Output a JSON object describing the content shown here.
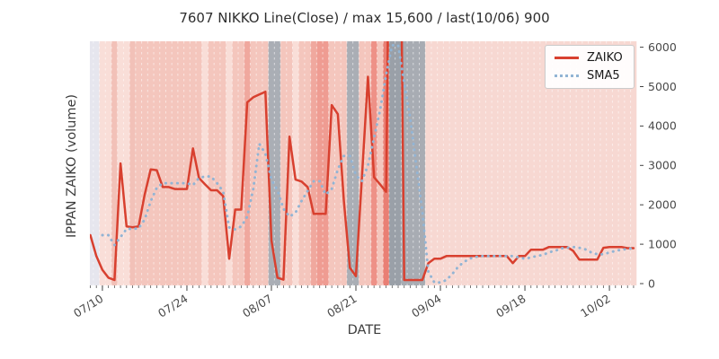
{
  "figure": {
    "title": "7607 NIKKO Line(Close) / max 15,600 / last(10/06) 900",
    "xlabel": "DATE",
    "ylabel": "IPPAN ZAIKO (volume)"
  },
  "legend": {
    "items": [
      {
        "label": "ZAIKO",
        "swatch": "solid-red-line"
      },
      {
        "label": "SMA5",
        "swatch": "dotted-blue-line"
      }
    ]
  },
  "chart_data": {
    "type": "line",
    "title": "7607 NIKKO Line(Close) / max 15,600 / last(10/06) 900",
    "xlabel": "DATE",
    "ylabel": "IPPAN ZAIKO (volume)",
    "x_axis": {
      "start_date": "07/08",
      "step_days": 1,
      "n_points": 91,
      "tick_indices": [
        2,
        16,
        30,
        44,
        58,
        72,
        86
      ],
      "tick_labels": [
        "07/10",
        "07/24",
        "08/07",
        "08/21",
        "09/04",
        "09/18",
        "10/02"
      ],
      "minor_ticks": "daily"
    },
    "y_axis": {
      "side": "right",
      "ticks": [
        0,
        1000,
        2000,
        3000,
        4000,
        5000,
        6000
      ],
      "ylim": [
        -50,
        6150
      ],
      "grid": false
    },
    "notes": "ZAIKO peak of 15,600 (around 08/27-08/28) is clipped above the visible y-range; last value 10/06 = 900.",
    "series": [
      {
        "name": "ZAIKO",
        "style": "solid",
        "color": "#d8402f",
        "values": [
          1230,
          700,
          350,
          150,
          90,
          3050,
          1450,
          1430,
          1450,
          2250,
          2900,
          2880,
          2450,
          2450,
          2400,
          2400,
          2400,
          3430,
          2680,
          2520,
          2370,
          2370,
          2220,
          630,
          1880,
          1880,
          4600,
          4730,
          4800,
          4870,
          1100,
          150,
          100,
          3730,
          2640,
          2590,
          2450,
          1770,
          1770,
          1770,
          4530,
          4300,
          2100,
          400,
          190,
          2700,
          5250,
          2700,
          2520,
          2330,
          15600,
          15600,
          90,
          90,
          90,
          90,
          520,
          630,
          630,
          700,
          700,
          700,
          700,
          700,
          700,
          700,
          700,
          700,
          700,
          700,
          520,
          700,
          700,
          860,
          860,
          860,
          930,
          930,
          930,
          930,
          830,
          610,
          610,
          610,
          610,
          910,
          930,
          930,
          930,
          900,
          900
        ]
      },
      {
        "name": "SMA5",
        "style": "dotted",
        "color": "#92b4d4",
        "derived": "5-day moving average of ZAIKO",
        "values": [
          null,
          null,
          1230,
          1230,
          980,
          1180,
          1390,
          1390,
          1400,
          1625,
          2090,
          2430,
          2550,
          2550,
          2550,
          2550,
          2550,
          2500,
          2680,
          2720,
          2720,
          2550,
          2340,
          1425,
          1375,
          1450,
          1700,
          2400,
          3550,
          3300,
          2640,
          2370,
          1900,
          1700,
          1800,
          2100,
          2350,
          2600,
          2600,
          2260,
          2400,
          2900,
          3240,
          3240,
          2750,
          2600,
          3000,
          3700,
          4400,
          5300,
          6050,
          6050,
          5100,
          4200,
          3000,
          1840,
          300,
          30,
          30,
          90,
          250,
          440,
          560,
          640,
          680,
          700,
          700,
          700,
          700,
          700,
          700,
          665,
          630,
          665,
          700,
          730,
          795,
          830,
          895,
          910,
          930,
          910,
          870,
          790,
          745,
          745,
          790,
          830,
          860,
          880,
          900
        ]
      }
    ],
    "background_bands": [
      {
        "from": 0,
        "to": 1,
        "color": "#e6e6ee"
      },
      {
        "from": 2,
        "to": 3,
        "color": "#f9ded8"
      },
      {
        "from": 4,
        "to": 4,
        "color": "#f2c1b8"
      },
      {
        "from": 5,
        "to": 6,
        "color": "#f9ded8"
      },
      {
        "from": 7,
        "to": 7,
        "color": "#f2c1b8"
      },
      {
        "from": 8,
        "to": 18,
        "color": "#f4c6bd"
      },
      {
        "from": 19,
        "to": 19,
        "color": "#f9ded8"
      },
      {
        "from": 20,
        "to": 22,
        "color": "#f4c6bd"
      },
      {
        "from": 23,
        "to": 23,
        "color": "#f9ded8"
      },
      {
        "from": 24,
        "to": 25,
        "color": "#f4c6bd"
      },
      {
        "from": 26,
        "to": 26,
        "color": "#f0a89e"
      },
      {
        "from": 27,
        "to": 29,
        "color": "#f4c6bd"
      },
      {
        "from": 30,
        "to": 31,
        "color": "#aaaeb5"
      },
      {
        "from": 32,
        "to": 33,
        "color": "#f4c6bd"
      },
      {
        "from": 34,
        "to": 34,
        "color": "#f9ded8"
      },
      {
        "from": 35,
        "to": 36,
        "color": "#f4c6bd"
      },
      {
        "from": 37,
        "to": 37,
        "color": "#f0a89e"
      },
      {
        "from": 38,
        "to": 39,
        "color": "#ef9c92"
      },
      {
        "from": 40,
        "to": 42,
        "color": "#f4c6bd"
      },
      {
        "from": 43,
        "to": 44,
        "color": "#aaaeb5"
      },
      {
        "from": 45,
        "to": 46,
        "color": "#f4c6bd"
      },
      {
        "from": 47,
        "to": 47,
        "color": "#ee9187"
      },
      {
        "from": 48,
        "to": 48,
        "color": "#f4c6bd"
      },
      {
        "from": 49,
        "to": 49,
        "color": "#e97f74"
      },
      {
        "from": 50,
        "to": 51,
        "color": "#9aa0a8"
      },
      {
        "from": 52,
        "to": 55,
        "color": "#a8acb3"
      },
      {
        "from": 56,
        "to": 90,
        "color": "#f7d8d2"
      }
    ],
    "day_separator_style": "white dashed vertical line between each day"
  }
}
